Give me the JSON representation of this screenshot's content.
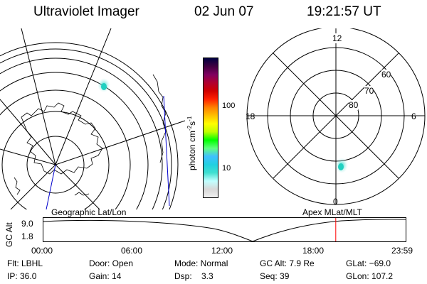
{
  "header": {
    "instrument": "Ultraviolet Imager",
    "date": "02 Jun 07",
    "time": "19:21:57 UT"
  },
  "colorbar": {
    "label": "photon cm",
    "label_sup1": "-2",
    "label_mid": "s",
    "label_sup2": "-1",
    "ticks": [
      "100",
      "10"
    ],
    "scale": "log",
    "colors": [
      "#f0f0f0",
      "#d8d8d8",
      "#c0ffff",
      "#40e0d0",
      "#20d0e0",
      "#40c0ff",
      "#60ff80",
      "#00ff00",
      "#c0ff00",
      "#ffff00",
      "#ffc000",
      "#ff8000",
      "#ff2000",
      "#d00000",
      "#b00030",
      "#800060",
      "#400040",
      "#000040"
    ]
  },
  "polar_plot": {
    "hour_labels": {
      "top": "12",
      "left": "18",
      "right": "6",
      "bottom": "0"
    },
    "lat_labels": [
      "60",
      "70",
      "80"
    ]
  },
  "panel_labels": {
    "left": "Geographic Lat/Lon",
    "right": "Apex MLat/MLT"
  },
  "timeline": {
    "ylabel": "GC Alt",
    "y_ticks": [
      "9.0",
      "1.8"
    ],
    "x_ticks": [
      "00:00",
      "06:00",
      "12:00",
      "18:00",
      "23:59"
    ],
    "marker_time": "19:21:57",
    "marker_color": "#ff0000"
  },
  "footer": {
    "row1": {
      "flt": "Flt: LBHL",
      "door": "Door: Open",
      "mode": "Mode: Normal",
      "gcalt": "GC Alt: 7.9 Re",
      "glat": "GLat: −69.0"
    },
    "row2": {
      "ip": "IP: 36.0",
      "gain": "Gain: 14",
      "dsp": "Dsp:    3.3",
      "seq": "Seq: 39",
      "glon": "GLon: 107.2"
    }
  }
}
